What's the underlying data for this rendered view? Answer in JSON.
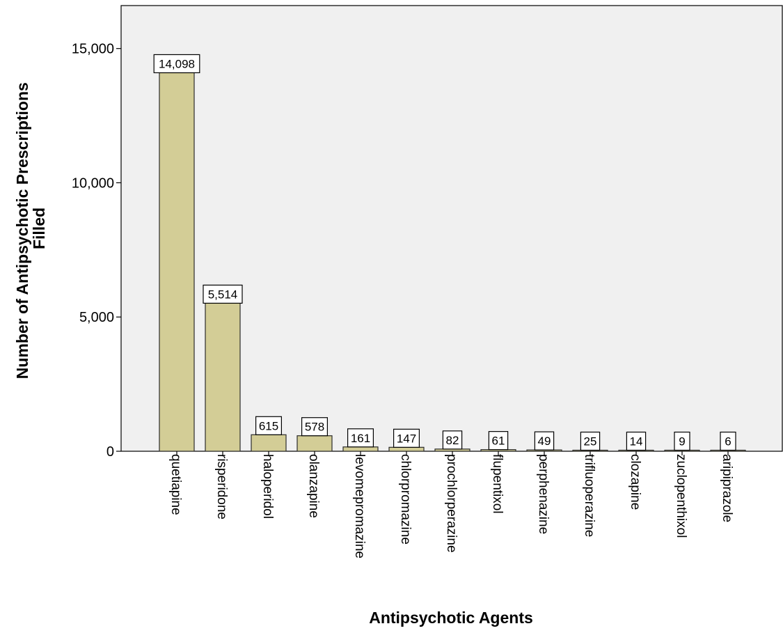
{
  "chart_data": {
    "type": "bar",
    "title": "",
    "xlabel": "Antipsychotic Agents",
    "ylabel": [
      "Number of Antipsychotic Prescriptions",
      "Filled"
    ],
    "categories": [
      "quetiapine",
      "risperidone",
      "haloperidol",
      "olanzapine",
      "levomepromazine",
      "chlorpromazine",
      "prochlorperazine",
      "flupentixol",
      "perphenazine",
      "trifluoperazine",
      "clozapine",
      "zuclopenthixol",
      "aripiprazole"
    ],
    "values": [
      14098,
      5514,
      615,
      578,
      161,
      147,
      82,
      61,
      49,
      25,
      14,
      9,
      6
    ],
    "data_labels": [
      "14,098",
      "5,514",
      "615",
      "578",
      "161",
      "147",
      "82",
      "61",
      "49",
      "25",
      "14",
      "9",
      "6"
    ],
    "yticks": [
      0,
      5000,
      10000,
      15000
    ],
    "ytick_labels": [
      "0",
      "5,000",
      "10,000",
      "15,000"
    ],
    "ylim": [
      0,
      16600
    ],
    "grid": false,
    "legend": "none",
    "colors": {
      "bar_fill": "#d3cd96",
      "bar_stroke": "#2b2b2b",
      "plot_background": "#f0f0f0",
      "label_box": "#ffffff"
    }
  }
}
